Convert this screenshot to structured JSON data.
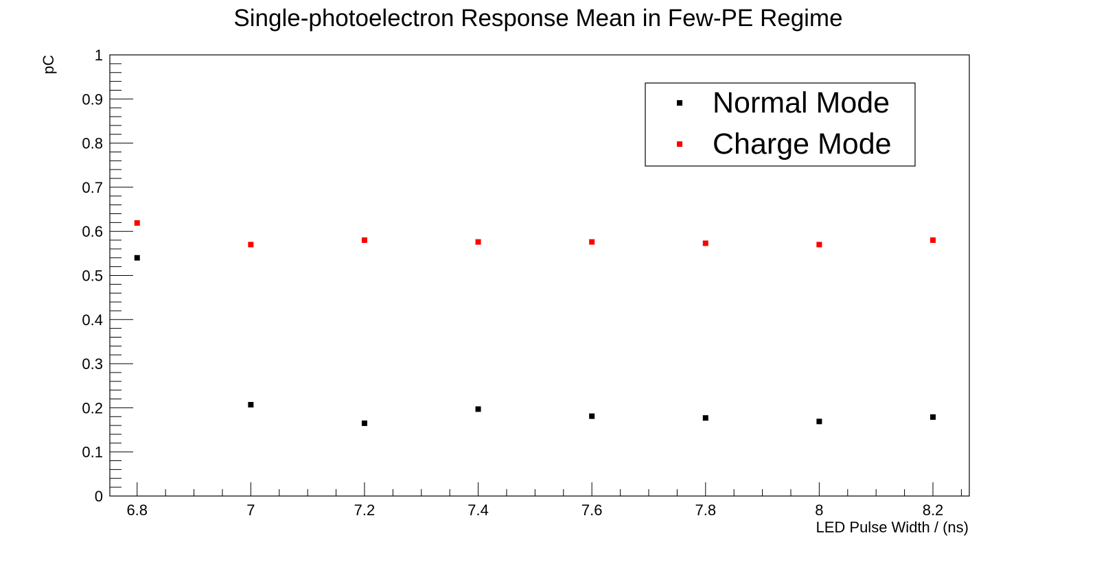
{
  "chart_data": {
    "type": "scatter",
    "title": "Single-photoelectron Response Mean in Few-PE Regime",
    "xlabel": "LED Pulse Width / (ns)",
    "ylabel": "pC",
    "xlim": [
      6.752,
      8.264
    ],
    "ylim": [
      0,
      1
    ],
    "x_ticks": [
      "6.8",
      "7",
      "7.2",
      "7.4",
      "7.6",
      "7.8",
      "8",
      "8.2"
    ],
    "y_ticks": [
      "0",
      "0.1",
      "0.2",
      "0.3",
      "0.4",
      "0.5",
      "0.6",
      "0.7",
      "0.8",
      "0.9",
      "1"
    ],
    "grid": false,
    "legend_position": "top-right",
    "series": [
      {
        "name": "Normal Mode",
        "color": "#000000",
        "marker": "square",
        "x": [
          6.8,
          7.0,
          7.2,
          7.4,
          7.6,
          7.8,
          8.0,
          8.2
        ],
        "y": [
          0.54,
          0.207,
          0.165,
          0.197,
          0.181,
          0.177,
          0.169,
          0.179
        ]
      },
      {
        "name": "Charge Mode",
        "color": "#ff0000",
        "marker": "square",
        "x": [
          6.8,
          7.0,
          7.2,
          7.4,
          7.6,
          7.8,
          8.0,
          8.2
        ],
        "y": [
          0.619,
          0.57,
          0.58,
          0.576,
          0.576,
          0.573,
          0.57,
          0.58
        ]
      }
    ]
  }
}
